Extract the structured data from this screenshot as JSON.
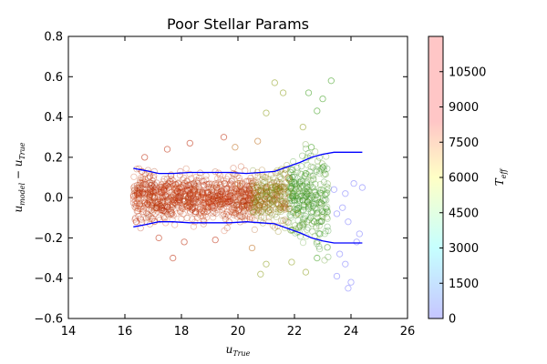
{
  "chart_data": {
    "type": "scatter",
    "title": "Poor Stellar Params",
    "xlabel": {
      "base": "u",
      "sub": "True"
    },
    "ylabel": {
      "base": "u",
      "sub1": "model",
      "mid": " − u",
      "sub2": "True"
    },
    "xlim": [
      14,
      26
    ],
    "ylim": [
      -0.6,
      0.8
    ],
    "xticks": [
      14,
      16,
      18,
      20,
      22,
      24,
      26
    ],
    "yticks": [
      -0.6,
      -0.4,
      -0.2,
      0.0,
      0.2,
      0.4,
      0.6,
      0.8
    ],
    "ytick_labels": [
      "−0.6",
      "−0.4",
      "−0.2",
      "0.0",
      "0.2",
      "0.4",
      "0.6",
      "0.8"
    ],
    "grid": false,
    "colorbar": {
      "label": {
        "base": "T",
        "sub": "eff"
      },
      "range": [
        0,
        12000
      ],
      "ticks": [
        0,
        1500,
        3000,
        4500,
        6000,
        7500,
        9000,
        10500
      ],
      "colors": [
        "#8080ff",
        "#80ffff",
        "#ffff80",
        "#ff8080",
        "#ff8080"
      ]
    },
    "band_upper": {
      "color": "#0000ff",
      "x": [
        16.3,
        16.7,
        17.2,
        17.7,
        18.3,
        19.0,
        19.7,
        20.3,
        20.8,
        21.3,
        21.7,
        22.2,
        22.6,
        23.0,
        23.4,
        24.4
      ],
      "y": [
        0.145,
        0.135,
        0.12,
        0.12,
        0.125,
        0.125,
        0.125,
        0.12,
        0.125,
        0.13,
        0.15,
        0.175,
        0.2,
        0.215,
        0.225,
        0.225
      ]
    },
    "band_lower": {
      "color": "#0000ff",
      "x": [
        16.3,
        16.7,
        17.2,
        17.7,
        18.3,
        19.0,
        19.7,
        20.3,
        20.8,
        21.3,
        21.7,
        22.2,
        22.6,
        23.0,
        23.4,
        24.4
      ],
      "y": [
        -0.145,
        -0.135,
        -0.12,
        -0.12,
        -0.125,
        -0.125,
        -0.125,
        -0.12,
        -0.125,
        -0.13,
        -0.15,
        -0.175,
        -0.2,
        -0.215,
        -0.225,
        -0.225
      ]
    },
    "points": [
      [
        16.5,
        0.02,
        6500
      ],
      [
        16.8,
        -0.03,
        6000
      ],
      [
        17.0,
        0.05,
        6200
      ],
      [
        17.3,
        -0.06,
        6100
      ],
      [
        17.6,
        0.08,
        5900
      ],
      [
        17.9,
        -0.01,
        6300
      ],
      [
        18.2,
        0.04,
        6000
      ],
      [
        18.5,
        -0.07,
        6100
      ],
      [
        18.8,
        0.06,
        5800
      ],
      [
        19.1,
        -0.04,
        6000
      ],
      [
        19.4,
        0.03,
        5900
      ],
      [
        19.7,
        -0.02,
        6100
      ],
      [
        20.0,
        0.07,
        5700
      ],
      [
        20.3,
        -0.05,
        5600
      ],
      [
        20.6,
        0.02,
        5400
      ],
      [
        20.9,
        -0.03,
        5000
      ],
      [
        21.2,
        0.05,
        4800
      ],
      [
        21.5,
        -0.06,
        4500
      ],
      [
        21.8,
        0.09,
        4200
      ],
      [
        22.1,
        -0.08,
        3900
      ],
      [
        22.4,
        0.12,
        3700
      ],
      [
        22.7,
        -0.12,
        3500
      ],
      [
        23.0,
        0.15,
        3400
      ],
      [
        22.9,
        -0.18,
        3300
      ],
      [
        22.6,
        0.25,
        3600
      ],
      [
        22.3,
        0.35,
        3800
      ],
      [
        22.8,
        0.43,
        3500
      ],
      [
        22.5,
        0.52,
        3700
      ],
      [
        23.0,
        0.49,
        3300
      ],
      [
        21.6,
        0.52,
        4300
      ],
      [
        21.0,
        0.42,
        4600
      ],
      [
        20.7,
        0.28,
        5000
      ],
      [
        19.5,
        0.3,
        5800
      ],
      [
        18.3,
        0.27,
        6000
      ],
      [
        17.5,
        0.24,
        6200
      ],
      [
        16.7,
        0.2,
        6500
      ],
      [
        17.2,
        -0.2,
        6300
      ],
      [
        18.1,
        -0.22,
        6100
      ],
      [
        19.2,
        -0.21,
        5900
      ],
      [
        20.5,
        -0.25,
        5200
      ],
      [
        21.0,
        -0.33,
        4700
      ],
      [
        21.9,
        -0.32,
        4200
      ],
      [
        22.4,
        -0.37,
        3800
      ],
      [
        22.8,
        -0.3,
        3600
      ],
      [
        23.4,
        0.04,
        1500
      ],
      [
        23.7,
        -0.05,
        1200
      ],
      [
        23.9,
        -0.12,
        1000
      ],
      [
        24.1,
        0.07,
        800
      ],
      [
        24.2,
        -0.22,
        900
      ],
      [
        23.6,
        -0.28,
        1300
      ],
      [
        23.8,
        -0.33,
        1100
      ],
      [
        24.0,
        -0.42,
        700
      ],
      [
        23.9,
        -0.45,
        800
      ],
      [
        24.3,
        -0.18,
        600
      ],
      [
        23.5,
        -0.39,
        1400
      ],
      [
        24.4,
        0.05,
        500
      ],
      [
        23.8,
        0.02,
        1100
      ],
      [
        23.5,
        -0.08,
        1500
      ],
      [
        17.7,
        -0.3,
        6000
      ],
      [
        23.3,
        0.58,
        3000
      ],
      [
        21.3,
        0.57,
        4500
      ],
      [
        20.8,
        -0.38,
        4900
      ],
      [
        19.9,
        0.25,
        5500
      ],
      [
        16.4,
        -0.12,
        6400
      ],
      [
        16.6,
        0.13,
        6300
      ]
    ]
  }
}
